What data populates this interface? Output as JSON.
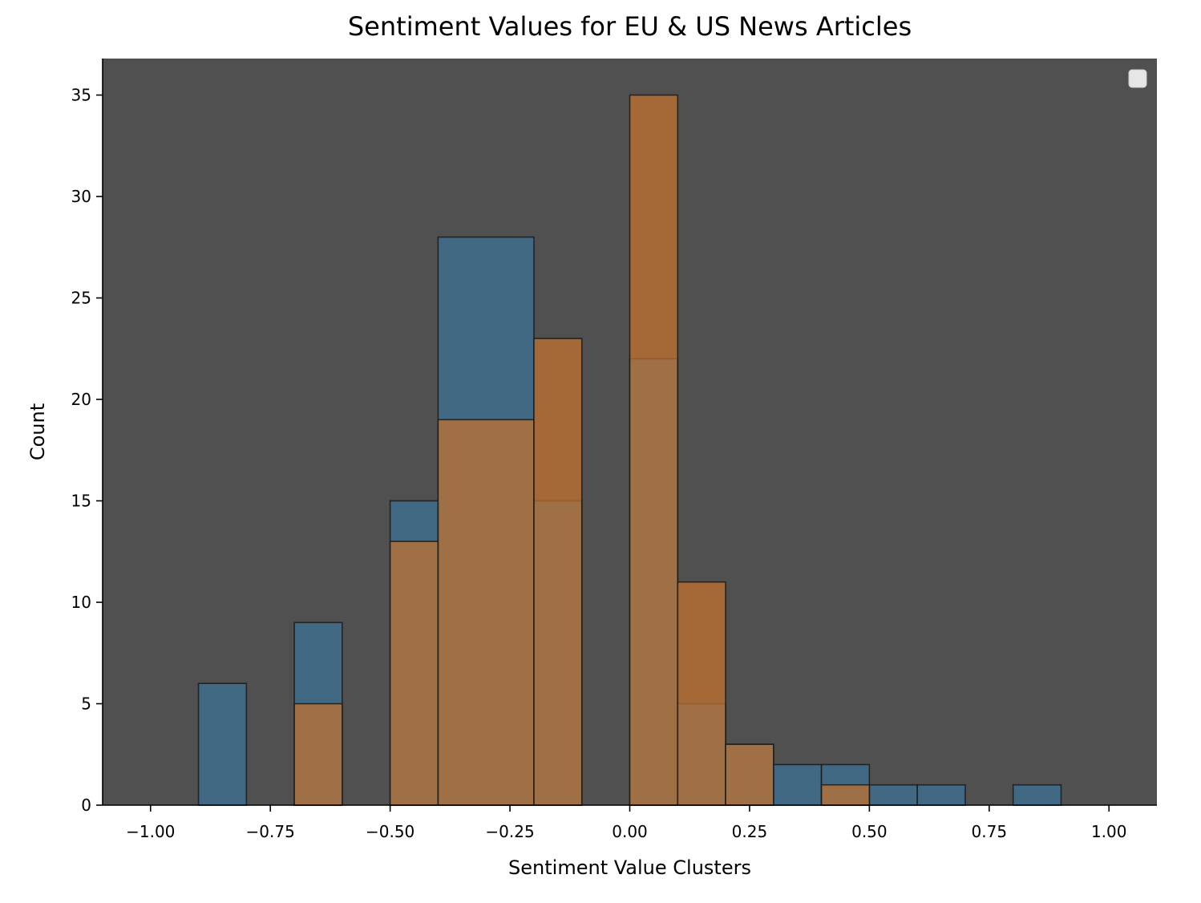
{
  "chart_data": {
    "type": "bar",
    "title": "Sentiment Values for EU & US News Articles",
    "xlabel": "Sentiment Value Clusters",
    "ylabel": "Count",
    "xlim": [
      -1.1,
      1.1
    ],
    "ylim": [
      0,
      36.8
    ],
    "x_ticks": [
      "−1.00",
      "−0.75",
      "−0.50",
      "−0.25",
      "0.00",
      "0.25",
      "0.50",
      "0.75",
      "1.00"
    ],
    "x_tick_values": [
      -1.0,
      -0.75,
      -0.5,
      -0.25,
      0.0,
      0.25,
      0.5,
      0.75,
      1.0
    ],
    "y_ticks": [
      0,
      5,
      10,
      15,
      20,
      25,
      30,
      35
    ],
    "grid": false,
    "legend": {
      "position": "top-right",
      "entries": []
    },
    "series": [
      {
        "color": "#3b7399",
        "bars": [
          {
            "x0": -0.9,
            "x1": -0.8,
            "value": 6
          },
          {
            "x0": -0.7,
            "x1": -0.6,
            "value": 9
          },
          {
            "x0": -0.5,
            "x1": -0.4,
            "value": 15
          },
          {
            "x0": -0.4,
            "x1": -0.2,
            "value": 28
          },
          {
            "x0": -0.2,
            "x1": -0.1,
            "value": 15
          },
          {
            "x0": 0.0,
            "x1": 0.1,
            "value": 22
          },
          {
            "x0": 0.1,
            "x1": 0.2,
            "value": 5
          },
          {
            "x0": 0.2,
            "x1": 0.3,
            "value": 3
          },
          {
            "x0": 0.3,
            "x1": 0.4,
            "value": 2
          },
          {
            "x0": 0.4,
            "x1": 0.5,
            "value": 2
          },
          {
            "x0": 0.5,
            "x1": 0.6,
            "value": 1
          },
          {
            "x0": 0.6,
            "x1": 0.7,
            "value": 1
          },
          {
            "x0": 0.8,
            "x1": 0.9,
            "value": 1
          }
        ]
      },
      {
        "color": "#c8732b",
        "bars": [
          {
            "x0": -0.7,
            "x1": -0.6,
            "value": 5
          },
          {
            "x0": -0.5,
            "x1": -0.4,
            "value": 13
          },
          {
            "x0": -0.4,
            "x1": -0.2,
            "value": 19
          },
          {
            "x0": -0.2,
            "x1": -0.1,
            "value": 23
          },
          {
            "x0": 0.0,
            "x1": 0.1,
            "value": 35
          },
          {
            "x0": 0.1,
            "x1": 0.2,
            "value": 11
          },
          {
            "x0": 0.2,
            "x1": 0.3,
            "value": 3
          },
          {
            "x0": 0.4,
            "x1": 0.5,
            "value": 1
          }
        ]
      }
    ]
  },
  "colors": {
    "plot_background": "#505050",
    "bar_edge": "#1a1a1a",
    "overlay_opacity": 0.7
  }
}
